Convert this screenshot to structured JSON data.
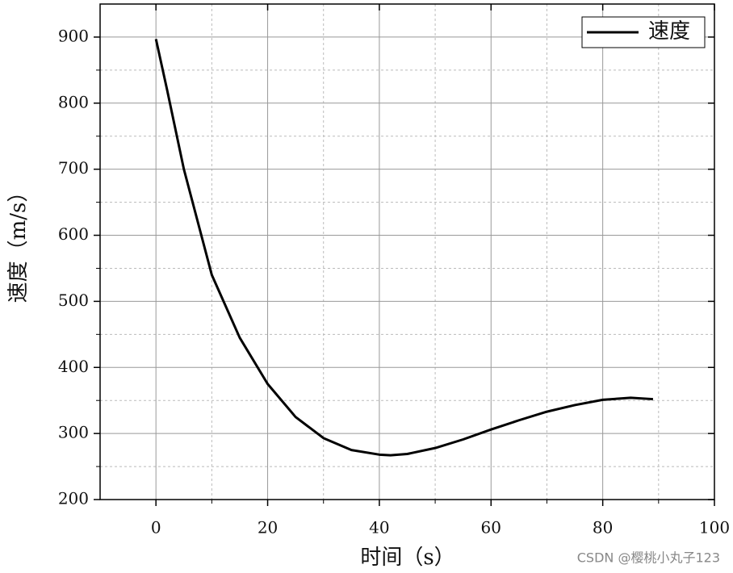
{
  "chart_data": {
    "type": "line",
    "x_label": "时间（s）",
    "y_label": "速度（m/s）",
    "series": [
      {
        "name": "速度",
        "color": "#000000",
        "x": [
          0,
          2,
          5,
          10,
          15,
          20,
          25,
          30,
          35,
          40,
          42,
          45,
          50,
          55,
          60,
          65,
          70,
          75,
          80,
          85,
          89
        ],
        "values": [
          897,
          820,
          700,
          540,
          445,
          375,
          325,
          293,
          275,
          268,
          267,
          269,
          278,
          291,
          306,
          320,
          333,
          343,
          351,
          354,
          352
        ]
      }
    ],
    "xlim": [
      -10,
      100
    ],
    "xticks": [
      0,
      20,
      40,
      60,
      80,
      100
    ],
    "minor_xticks": [
      10,
      30,
      50,
      70,
      90
    ],
    "ylim": [
      200,
      950
    ],
    "yticks": [
      200,
      300,
      400,
      500,
      600,
      700,
      800,
      900
    ],
    "minor_yticks": [
      250,
      350,
      450,
      550,
      650,
      750,
      850
    ],
    "grid": true,
    "legend": "upper right",
    "watermark": "CSDN @樱桃小丸子123"
  }
}
